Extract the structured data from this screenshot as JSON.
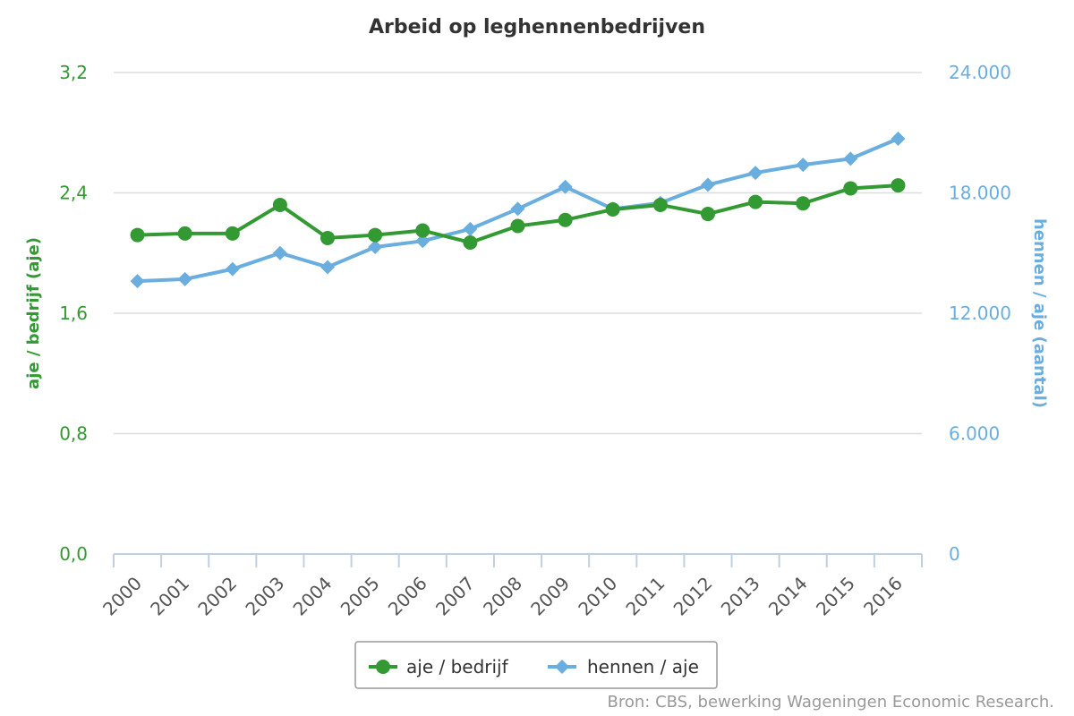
{
  "chart_data": {
    "type": "line",
    "title": "Arbeid op leghennenbedrijven",
    "categories": [
      "2000",
      "2001",
      "2002",
      "2003",
      "2004",
      "2005",
      "2006",
      "2007",
      "2008",
      "2009",
      "2010",
      "2011",
      "2012",
      "2013",
      "2014",
      "2015",
      "2016"
    ],
    "y_left": {
      "label": "aje / bedrijf (aje)",
      "ticks": [
        "0,0",
        "0,8",
        "1,6",
        "2,4",
        "3,2"
      ],
      "range": [
        0,
        3.2
      ],
      "color": "#339933"
    },
    "y_right": {
      "label": "hennen / aje (aantal)",
      "ticks": [
        "0",
        "6.000",
        "12.000",
        "18.000",
        "24.000"
      ],
      "range": [
        0,
        24000
      ],
      "color": "#6aaee0"
    },
    "series": [
      {
        "name": "aje / bedrijf",
        "axis": "left",
        "color": "#339933",
        "marker": "circle",
        "values": [
          2.12,
          2.13,
          2.13,
          2.32,
          2.1,
          2.12,
          2.15,
          2.07,
          2.18,
          2.22,
          2.29,
          2.32,
          2.26,
          2.34,
          2.33,
          2.43,
          2.45
        ]
      },
      {
        "name": "hennen / aje",
        "axis": "right",
        "color": "#6aaee0",
        "marker": "diamond",
        "values": [
          13600,
          13700,
          14200,
          15000,
          14300,
          15300,
          15600,
          16200,
          17200,
          18300,
          17200,
          17500,
          18400,
          19000,
          19400,
          19700,
          20700
        ]
      }
    ],
    "grid": true,
    "legend_position": "bottom-center"
  },
  "credit": "Bron: CBS, bewerking Wageningen Economic Research."
}
